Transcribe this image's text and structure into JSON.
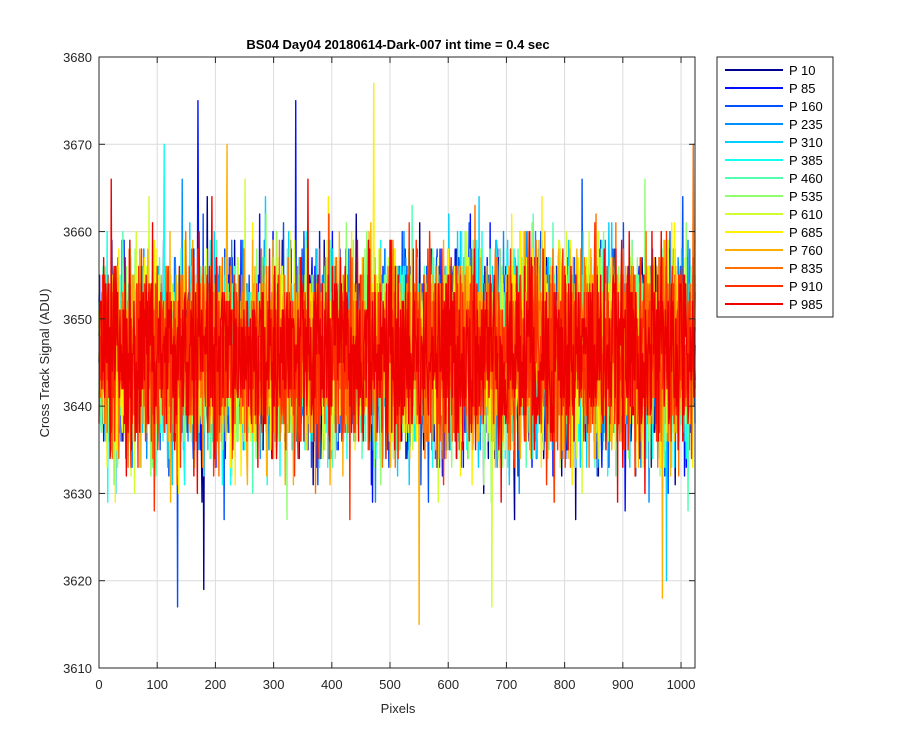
{
  "chart_data": {
    "type": "line",
    "title": "BS04 Day04 20180614-Dark-007 int time = 0.4 sec",
    "xlabel": "Pixels",
    "ylabel": "Cross Track Signal (ADU)",
    "xlim": [
      0,
      1024
    ],
    "ylim": [
      3610,
      3680
    ],
    "xticks": [
      0,
      100,
      200,
      300,
      400,
      500,
      600,
      700,
      800,
      900,
      1000
    ],
    "yticks": [
      3610,
      3620,
      3630,
      3640,
      3650,
      3660,
      3670,
      3680
    ],
    "grid": true,
    "legend_position": "outside-right",
    "noise": {
      "mean": 3646,
      "spread": 5.5,
      "min": 3615,
      "max": 3677
    },
    "series": [
      {
        "name": "P 10",
        "color": "#00008f"
      },
      {
        "name": "P 85",
        "color": "#0010ff"
      },
      {
        "name": "P 160",
        "color": "#0050ff"
      },
      {
        "name": "P 235",
        "color": "#008fff"
      },
      {
        "name": "P 310",
        "color": "#00cfff"
      },
      {
        "name": "P 385",
        "color": "#10ffef"
      },
      {
        "name": "P 460",
        "color": "#50ffaf"
      },
      {
        "name": "P 535",
        "color": "#8fff70"
      },
      {
        "name": "P 610",
        "color": "#cfff30"
      },
      {
        "name": "P 685",
        "color": "#ffef00"
      },
      {
        "name": "P 760",
        "color": "#ffaf00"
      },
      {
        "name": "P 835",
        "color": "#ff7000"
      },
      {
        "name": "P 910",
        "color": "#ff3000"
      },
      {
        "name": "P 985",
        "color": "#ef0000"
      }
    ],
    "annotated_points": [
      {
        "series": "P 10",
        "x": 180,
        "y": 3619
      },
      {
        "series": "P 85",
        "x": 170,
        "y": 3675
      },
      {
        "series": "P 85",
        "x": 338,
        "y": 3675
      },
      {
        "series": "P 160",
        "x": 135,
        "y": 3617
      },
      {
        "series": "P 310",
        "x": 975,
        "y": 3620
      },
      {
        "series": "P 685",
        "x": 472,
        "y": 3677
      },
      {
        "series": "P 760",
        "x": 550,
        "y": 3615
      },
      {
        "series": "P 760",
        "x": 968,
        "y": 3618
      },
      {
        "series": "P 610",
        "x": 675,
        "y": 3617
      },
      {
        "series": "P 835",
        "x": 1021,
        "y": 3670
      }
    ]
  }
}
